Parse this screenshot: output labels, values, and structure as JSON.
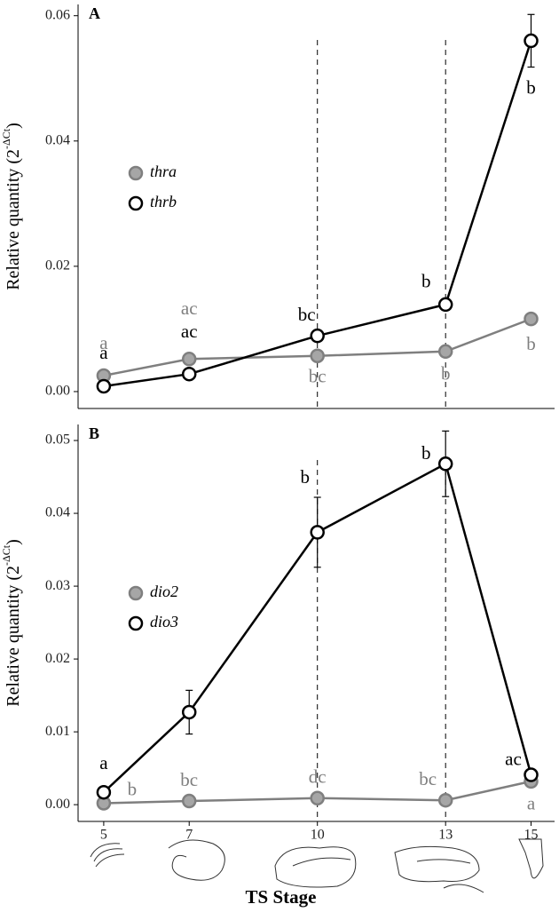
{
  "chart_data": [
    {
      "type": "line",
      "label": "A",
      "ylabel": "Relative quantity (2",
      "ylabel_sup": "-ΔCt",
      "ylabel_end": ")",
      "xlim": [
        4.4,
        15.55
      ],
      "ylim": [
        -0.0027,
        0.0618
      ],
      "yticks": [
        {
          "value": 0,
          "label": "0.00"
        },
        {
          "value": 0.02,
          "label": "0.02"
        },
        {
          "value": 0.04,
          "label": "0.04"
        },
        {
          "value": 0.06,
          "label": "0.06"
        }
      ],
      "vlines": [
        10,
        13
      ],
      "legend": "upper left",
      "x": [
        5,
        7,
        10,
        13,
        15
      ],
      "series": [
        {
          "name": "thra",
          "color": "#7f7f7f",
          "fill": "#a6a6a6",
          "values": [
            0.00255,
            0.0052,
            0.0057,
            0.0064,
            0.0116
          ],
          "errors": [
            0.0003,
            0.0002,
            0.0003,
            0.0003,
            0.0003
          ],
          "letters": [
            "a",
            "ac",
            "bc",
            "b",
            "b"
          ]
        },
        {
          "name": "thrb",
          "color": "#000000",
          "fill": "#ffffff",
          "values": [
            0.00085,
            0.0028,
            0.0089,
            0.0139,
            0.056
          ],
          "errors": [
            0.0002,
            0.0002,
            0.0003,
            0.0003,
            0.0042
          ],
          "letters": [
            "a",
            "ac",
            "bc",
            "b",
            "b"
          ]
        }
      ]
    },
    {
      "type": "line",
      "label": "B",
      "ylabel": "Relative quantity (2",
      "ylabel_sup": "-ΔCt",
      "ylabel_end": ")",
      "xlabel": "TS Stage",
      "xlim": [
        4.4,
        15.55
      ],
      "ylim": [
        -0.0023,
        0.0522
      ],
      "xticks": [
        5,
        7,
        10,
        13,
        15
      ],
      "yticks": [
        {
          "value": 0,
          "label": "0.00"
        },
        {
          "value": 0.01,
          "label": "0.01"
        },
        {
          "value": 0.02,
          "label": "0.02"
        },
        {
          "value": 0.03,
          "label": "0.03"
        },
        {
          "value": 0.04,
          "label": "0.04"
        },
        {
          "value": 0.05,
          "label": "0.05"
        }
      ],
      "vlines": [
        10,
        13
      ],
      "legend": "upper left",
      "x": [
        5,
        7,
        10,
        13,
        15
      ],
      "series": [
        {
          "name": "dio2",
          "color": "#7f7f7f",
          "fill": "#a6a6a6",
          "values": [
            0.0002,
            0.0005,
            0.0009,
            0.0006,
            0.0032
          ],
          "errors": [
            0.0001,
            0.0001,
            0.0002,
            0.0001,
            0.0003
          ],
          "letters": [
            "b",
            "bc",
            "dc",
            "bc",
            "a"
          ]
        },
        {
          "name": "dio3",
          "color": "#000000",
          "fill": "#ffffff",
          "values": [
            0.0017,
            0.0127,
            0.0374,
            0.0468,
            0.0041
          ],
          "errors": [
            0.0003,
            0.003,
            0.0048,
            0.0045,
            0.0005
          ],
          "letters": [
            "a",
            null,
            "b",
            "b",
            "ac"
          ]
        }
      ]
    }
  ]
}
